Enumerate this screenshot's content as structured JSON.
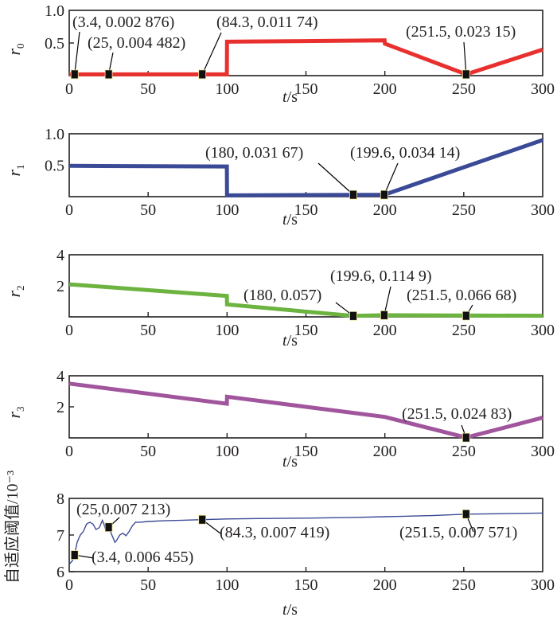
{
  "chart_data": [
    {
      "type": "line",
      "ylabel": "r",
      "ylabel_sub": "0",
      "xlabel": "t/s",
      "xlim": [
        0,
        300
      ],
      "ylim": [
        0,
        1.0
      ],
      "xticks": [
        0,
        50,
        100,
        150,
        200,
        250,
        300
      ],
      "xtick_labels": [
        "0",
        "50",
        "100",
        "150",
        "200",
        "250",
        "300"
      ],
      "yticks": [
        0.5,
        1.0
      ],
      "ytick_labels": [
        "0.5",
        "1.0"
      ],
      "color": "#e8312f",
      "series": [
        {
          "name": "r0",
          "x": [
            0,
            99.9,
            100,
            199.8,
            200,
            251.5,
            300
          ],
          "y": [
            0.02,
            0.02,
            0.52,
            0.54,
            0.49,
            0.02,
            0.4
          ]
        }
      ],
      "annotations": [
        {
          "x": 3.4,
          "y": 0.02,
          "label": "(3.4, 0.002 876)"
        },
        {
          "x": 25,
          "y": 0.02,
          "label": "(25, 0.004 482)"
        },
        {
          "x": 84.3,
          "y": 0.02,
          "label": "(84.3, 0.011 74)"
        },
        {
          "x": 251.5,
          "y": 0.02,
          "label": "(251.5, 0.023 15)"
        }
      ]
    },
    {
      "type": "line",
      "ylabel": "r",
      "ylabel_sub": "1",
      "xlabel": "t/s",
      "xlim": [
        0,
        300
      ],
      "ylim": [
        0,
        1.0
      ],
      "xticks": [
        0,
        50,
        100,
        150,
        200,
        250,
        300
      ],
      "xtick_labels": [
        "0",
        "50",
        "100",
        "150",
        "200",
        "250",
        "300"
      ],
      "yticks": [
        0.5,
        1.0
      ],
      "ytick_labels": [
        "0.5",
        "1.0"
      ],
      "color": "#3b4a96",
      "series": [
        {
          "name": "r1",
          "x": [
            0,
            99.9,
            100,
            199.6,
            300
          ],
          "y": [
            0.49,
            0.48,
            0.02,
            0.03,
            0.9
          ]
        }
      ],
      "annotations": [
        {
          "x": 180,
          "y": 0.03,
          "label": "(180, 0.031 67)"
        },
        {
          "x": 199.6,
          "y": 0.03,
          "label": "(199.6, 0.034 14)"
        }
      ]
    },
    {
      "type": "line",
      "ylabel": "r",
      "ylabel_sub": "2",
      "xlabel": "t/s",
      "xlim": [
        0,
        300
      ],
      "ylim": [
        0,
        4
      ],
      "xticks": [
        0,
        50,
        100,
        150,
        200,
        250,
        300
      ],
      "xtick_labels": [
        "0",
        "50",
        "100",
        "150",
        "200",
        "250",
        "300"
      ],
      "yticks": [
        2,
        4
      ],
      "ytick_labels": [
        "2",
        "4"
      ],
      "color": "#6cb33f",
      "series": [
        {
          "name": "r2",
          "x": [
            0,
            99.9,
            100,
            180,
            199.6,
            300
          ],
          "y": [
            2.1,
            1.35,
            0.8,
            0.06,
            0.11,
            0.07
          ]
        }
      ],
      "annotations": [
        {
          "x": 180,
          "y": 0.06,
          "label": "(180, 0.057)"
        },
        {
          "x": 199.6,
          "y": 0.11,
          "label": "(199.6, 0.114 9)"
        },
        {
          "x": 251.5,
          "y": 0.07,
          "label": "(251.5, 0.066 68)"
        }
      ]
    },
    {
      "type": "line",
      "ylabel": "r",
      "ylabel_sub": "3",
      "xlabel": "t/s",
      "xlim": [
        0,
        300
      ],
      "ylim": [
        0,
        4
      ],
      "xticks": [
        0,
        50,
        100,
        150,
        200,
        250,
        300
      ],
      "xtick_labels": [
        "0",
        "50",
        "100",
        "150",
        "200",
        "250",
        "300"
      ],
      "yticks": [
        2,
        4
      ],
      "ytick_labels": [
        "2",
        "4"
      ],
      "color": "#a0559c",
      "series": [
        {
          "name": "r3",
          "x": [
            0,
            99.9,
            100,
            200,
            251.5,
            300
          ],
          "y": [
            3.5,
            2.2,
            2.65,
            1.35,
            0.02,
            1.3
          ]
        }
      ],
      "annotations": [
        {
          "x": 251.5,
          "y": 0.02,
          "label": "(251.5, 0.024 83)"
        }
      ]
    },
    {
      "type": "line",
      "ylabel": "自适应阈值/10⁻³",
      "ylabel_sub": "",
      "xlabel": "t/s",
      "xlim": [
        0,
        300
      ],
      "ylim": [
        6,
        8
      ],
      "xticks": [
        0,
        50,
        100,
        150,
        200,
        250,
        300
      ],
      "xtick_labels": [
        "0",
        "50",
        "100",
        "150",
        "200",
        "250",
        "300"
      ],
      "yticks": [
        6,
        7,
        8
      ],
      "ytick_labels": [
        "6",
        "7",
        "8"
      ],
      "color": "#3b4a96",
      "series": [
        {
          "name": "adaptive-threshold",
          "x": [
            0,
            2,
            3.4,
            5,
            7,
            9,
            11,
            13,
            15,
            17,
            19,
            21,
            22,
            23,
            25,
            27,
            29,
            30,
            32,
            34,
            36,
            38,
            40,
            42,
            45,
            50,
            60,
            70,
            84.3,
            100,
            120,
            150,
            180,
            200,
            230,
            251.5,
            270,
            300
          ],
          "y": [
            6.2,
            6.3,
            6.45,
            6.8,
            7.0,
            7.1,
            7.3,
            7.35,
            7.3,
            7.15,
            7.2,
            7.4,
            7.3,
            7.15,
            7.21,
            7.0,
            6.8,
            6.85,
            7.0,
            7.05,
            6.98,
            7.1,
            7.25,
            7.35,
            7.35,
            7.37,
            7.39,
            7.4,
            7.42,
            7.44,
            7.45,
            7.46,
            7.48,
            7.5,
            7.53,
            7.57,
            7.58,
            7.6
          ]
        }
      ],
      "annotations": [
        {
          "x": 3.4,
          "y": 6.455,
          "label": "(3.4, 0.006 455)"
        },
        {
          "x": 25,
          "y": 7.213,
          "label": "(25,0.007 213)"
        },
        {
          "x": 84.3,
          "y": 7.419,
          "label": "(84.3, 0.007 419)"
        },
        {
          "x": 251.5,
          "y": 7.571,
          "label": "(251.5, 0.007 571)"
        }
      ]
    }
  ]
}
